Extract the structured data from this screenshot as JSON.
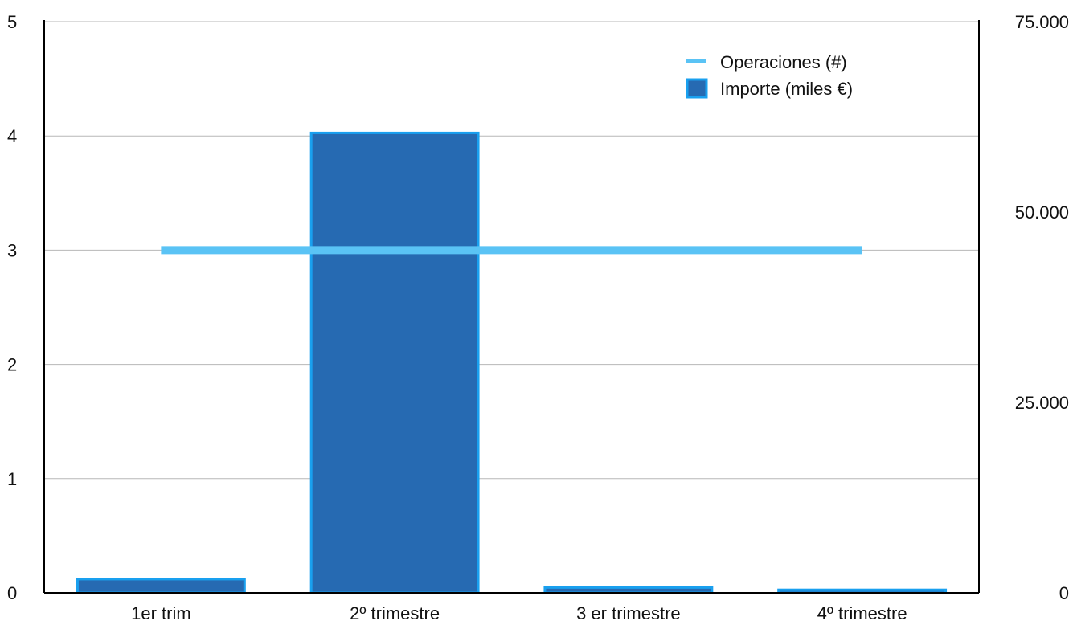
{
  "chart_data": {
    "type": "bar",
    "categories": [
      "1er trim",
      "2º trimestre",
      "3 er trimestre",
      "4º trimestre"
    ],
    "series": [
      {
        "name": "Importe (miles €)",
        "type": "bar",
        "axis": "right",
        "values": [
          1800,
          60400,
          700,
          400
        ]
      },
      {
        "name": "Operaciones (#)",
        "type": "line",
        "axis": "left",
        "values": [
          3,
          3,
          3,
          3
        ]
      }
    ],
    "y_left": {
      "min": 0,
      "max": 5,
      "ticks": [
        "0",
        "1",
        "2",
        "3",
        "4",
        "5"
      ]
    },
    "y_right": {
      "min": 0,
      "max": 75000,
      "ticks": [
        "0",
        "25.000",
        "50.000",
        "75.000"
      ]
    },
    "grid": true,
    "legend_position": "top-right",
    "colors": {
      "bar_fill": "#266ab2",
      "bar_stroke": "#19a0ef",
      "line": "#5ac3f5",
      "grid": "#b7b7b7",
      "axis": "#000000"
    }
  }
}
